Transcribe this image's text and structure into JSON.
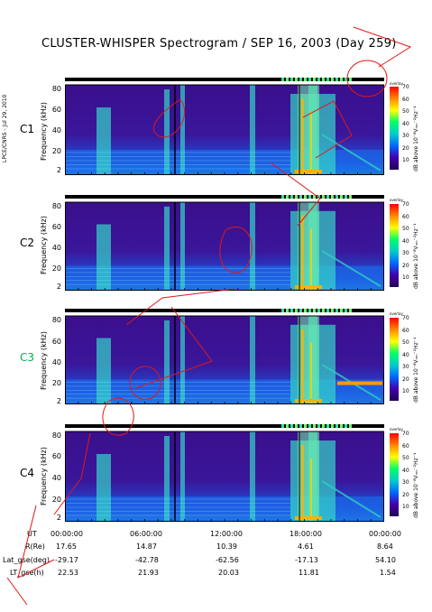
{
  "title": "CLUSTER-WHISPER Spectrogram / SEP 16, 2003 (Day 259)",
  "side_stamp": "LPCE/CNRS - Jul 29, 2010",
  "colorbar": {
    "top_label": "overlay",
    "label": "dB above 10⁻⁸Vₘₙ⁻²Hz⁻¹",
    "ticks": [
      "70",
      "60",
      "50",
      "40",
      "30",
      "20",
      "10"
    ],
    "colors": [
      "#ff0000",
      "#ff8800",
      "#ffff00",
      "#00ff66",
      "#00cccc",
      "#0066ff",
      "#4400aa",
      "#220055"
    ]
  },
  "colors": {
    "background_low": "#3a0f8c",
    "mid": "#1f5fe0",
    "high": "#36e6d0",
    "peak": "#ffb000"
  },
  "chart_data": [
    {
      "type": "heatmap",
      "panel": "C1",
      "ylabel": "Frequency (kHz)",
      "yticks": [
        "80",
        "60",
        "40",
        "20",
        "2"
      ],
      "ylim": [
        2,
        80
      ],
      "zlabel_units": "dB"
    },
    {
      "type": "heatmap",
      "panel": "C2",
      "ylabel": "Frequency (kHz)",
      "yticks": [
        "80",
        "60",
        "40",
        "20",
        "2"
      ],
      "ylim": [
        2,
        80
      ],
      "zlabel_units": "dB"
    },
    {
      "type": "heatmap",
      "panel": "C3",
      "panel_color": "#00b050",
      "ylabel": "Frequency (kHz)",
      "yticks": [
        "80",
        "60",
        "40",
        "20",
        "2"
      ],
      "ylim": [
        2,
        80
      ],
      "zlabel_units": "dB"
    },
    {
      "type": "heatmap",
      "panel": "C4",
      "ylabel": "Frequency (kHz)",
      "yticks": [
        "80",
        "60",
        "40",
        "20",
        "2"
      ],
      "ylim": [
        2,
        80
      ],
      "zlabel_units": "dB"
    }
  ],
  "time_axis": {
    "ticks": [
      "00:00:00",
      "06:00:00",
      "12:00:00",
      "18:00:00",
      "00:00:00"
    ]
  },
  "ephemeris": [
    {
      "label": "UT",
      "values": [
        "",
        "",
        "",
        "",
        ""
      ]
    },
    {
      "label": "R(Re)",
      "values": [
        "17.65",
        "14.87",
        "10.39",
        "4.61",
        "8.64"
      ]
    },
    {
      "label": "Lat_gse(deg)",
      "values": [
        "-29.17",
        "-42.78",
        "-62.56",
        "-17.13",
        "54.10"
      ]
    },
    {
      "label": "LT_gse(h)",
      "values": [
        "22.53",
        "21.93",
        "20.03",
        "11.81",
        "1.54"
      ]
    }
  ]
}
